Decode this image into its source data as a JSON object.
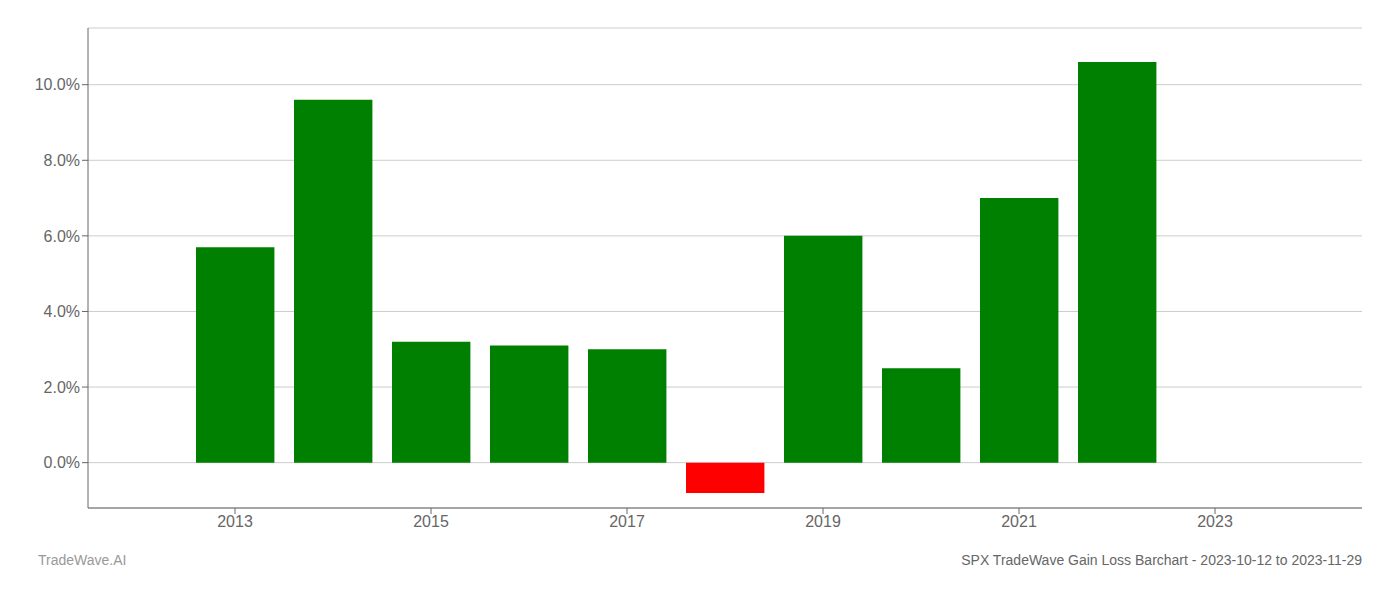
{
  "chart_data": {
    "type": "bar",
    "title": "SPX TradeWave Gain Loss Barchart - 2023-10-12 to 2023-11-29",
    "annotations": [
      "TradeWave.AI"
    ],
    "x": [
      2013,
      2014,
      2015,
      2016,
      2017,
      2018,
      2019,
      2020,
      2021,
      2022
    ],
    "values": [
      0.057,
      0.096,
      0.032,
      0.031,
      0.03,
      -0.008,
      0.06,
      0.025,
      0.07,
      0.106
    ],
    "colors": [
      "#008000",
      "#008000",
      "#008000",
      "#008000",
      "#008000",
      "#ff0000",
      "#008000",
      "#008000",
      "#008000",
      "#008000"
    ],
    "xlim": [
      2011.5,
      2024.5
    ],
    "xticks": [
      2013,
      2015,
      2017,
      2019,
      2021,
      2023
    ],
    "ylim": [
      -0.012,
      0.115
    ],
    "yticks": [
      {
        "value": 0.0,
        "label": "0.0%"
      },
      {
        "value": 0.02,
        "label": "2.0%"
      },
      {
        "value": 0.04,
        "label": "4.0%"
      },
      {
        "value": 0.06,
        "label": "6.0%"
      },
      {
        "value": 0.08,
        "label": "8.0%"
      },
      {
        "value": 0.1,
        "label": "10.0%"
      }
    ],
    "grid": true
  }
}
